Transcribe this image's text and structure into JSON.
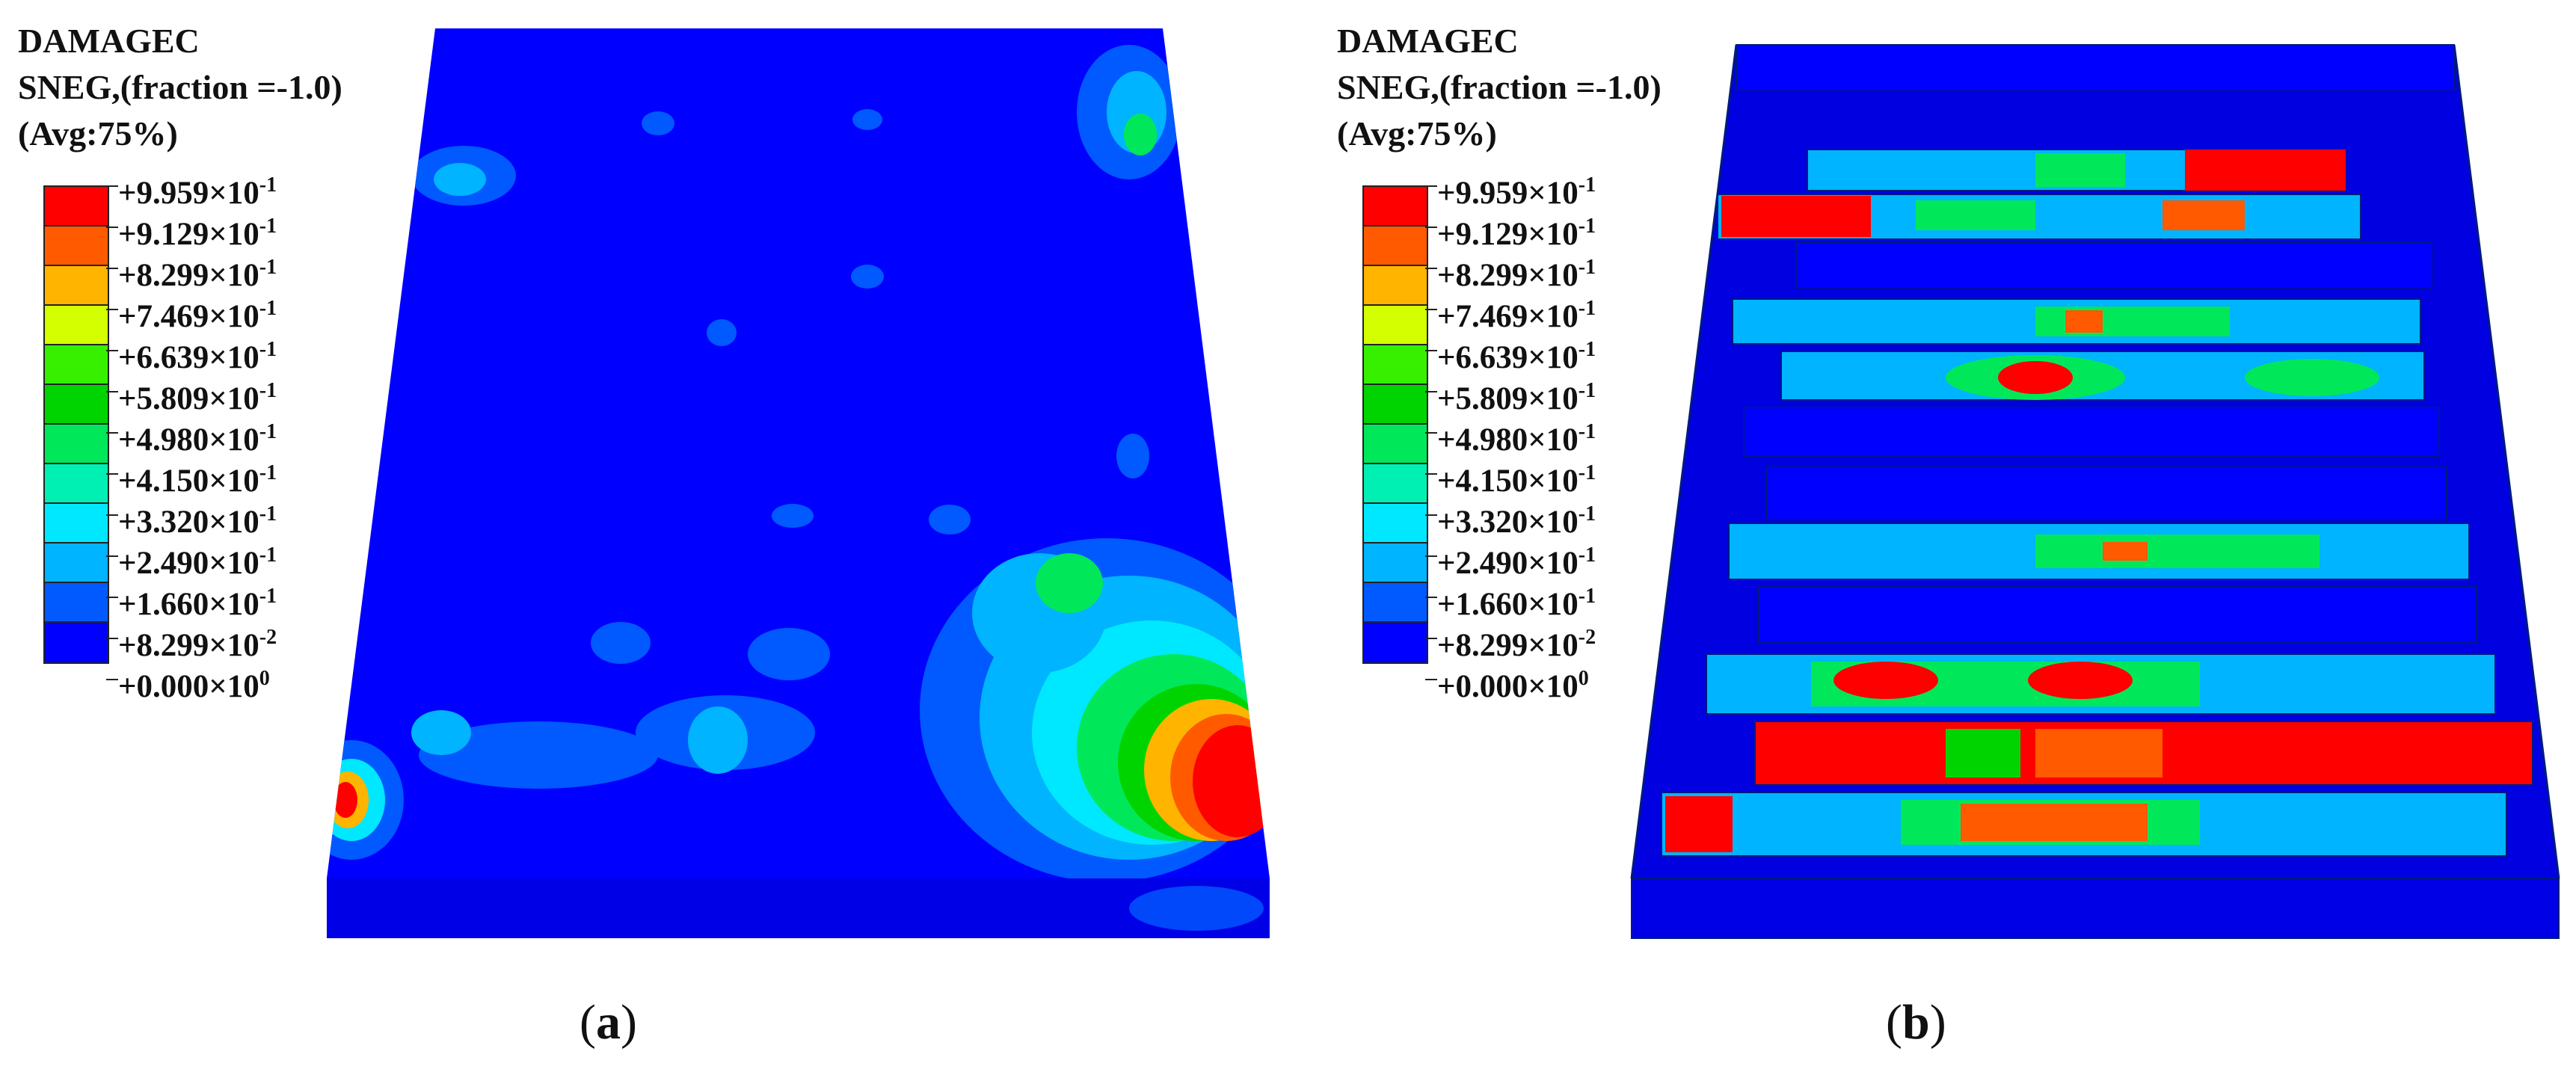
{
  "legend": {
    "title_line1": "DAMAGEC",
    "title_line2": "SNEG,(fraction =-1.0)",
    "title_line3": "(Avg:75%)",
    "ticks": [
      {
        "mantissa": "+9.959",
        "exp": "-1"
      },
      {
        "mantissa": "+9.129",
        "exp": "-1"
      },
      {
        "mantissa": "+8.299",
        "exp": "-1"
      },
      {
        "mantissa": "+7.469",
        "exp": "-1"
      },
      {
        "mantissa": "+6.639",
        "exp": "-1"
      },
      {
        "mantissa": "+5.809",
        "exp": "-1"
      },
      {
        "mantissa": "+4.980",
        "exp": "-1"
      },
      {
        "mantissa": "+4.150",
        "exp": "-1"
      },
      {
        "mantissa": "+3.320",
        "exp": "-1"
      },
      {
        "mantissa": "+2.490",
        "exp": "-1"
      },
      {
        "mantissa": "+1.660",
        "exp": "-1"
      },
      {
        "mantissa": "+8.299",
        "exp": "-2"
      },
      {
        "mantissa": "+0.000",
        "exp": "0"
      }
    ],
    "colors": [
      "#ff0000",
      "#ff5a00",
      "#ffb400",
      "#d4ff00",
      "#36f000",
      "#00d400",
      "#00e85a",
      "#00f0b4",
      "#00e8ff",
      "#00b4ff",
      "#005aff",
      "#0000ff"
    ]
  },
  "captions": {
    "a_open": "(",
    "a_letter": "a",
    "a_close": ")",
    "b_open": "(",
    "b_letter": "b",
    "b_close": ")"
  }
}
